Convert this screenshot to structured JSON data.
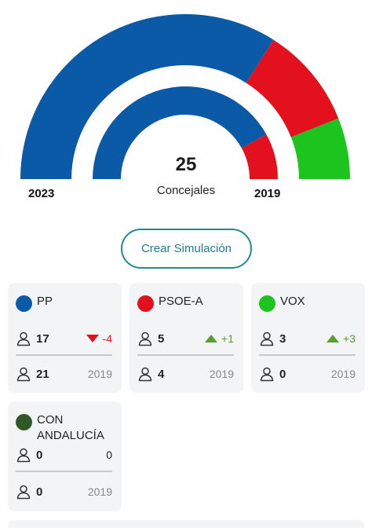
{
  "hemicycle": {
    "total_value": "25",
    "total_label": "Concejales",
    "year_current": "2023",
    "year_previous": "2019",
    "outer_ring": [
      {
        "party": "PP",
        "seats": 17,
        "color": "#0b5aa8"
      },
      {
        "party": "PSOE-A",
        "seats": 5,
        "color": "#e3101e"
      },
      {
        "party": "VOX",
        "seats": 3,
        "color": "#1ec41e"
      }
    ],
    "inner_ring": [
      {
        "party": "PP",
        "seats": 21,
        "color": "#0b5aa8"
      },
      {
        "party": "PSOE-A",
        "seats": 4,
        "color": "#e3101e"
      }
    ]
  },
  "simulation_button": "Crear Simulación",
  "cards": [
    {
      "name": "PP",
      "color": "#0b5aa8",
      "seats_current": "17",
      "change": "-4",
      "change_dir": "down",
      "seats_previous": "21",
      "previous_year": "2019"
    },
    {
      "name": "PSOE-A",
      "color": "#e3101e",
      "seats_current": "5",
      "change": "+1",
      "change_dir": "up",
      "seats_previous": "4",
      "previous_year": "2019"
    },
    {
      "name": "VOX",
      "color": "#1ec41e",
      "seats_current": "3",
      "change": "+3",
      "change_dir": "up",
      "seats_previous": "0",
      "previous_year": "2019"
    },
    {
      "name": "CON ANDALUCÍA",
      "color": "#2f5a27",
      "seats_current": "0",
      "change": "0",
      "change_dir": "none",
      "seats_previous": "0",
      "previous_year": "2019"
    }
  ],
  "colors": {
    "down": "#e3101e",
    "up": "#5a9e2f",
    "neutral": "#222222",
    "accent": "#1f8a9a"
  }
}
